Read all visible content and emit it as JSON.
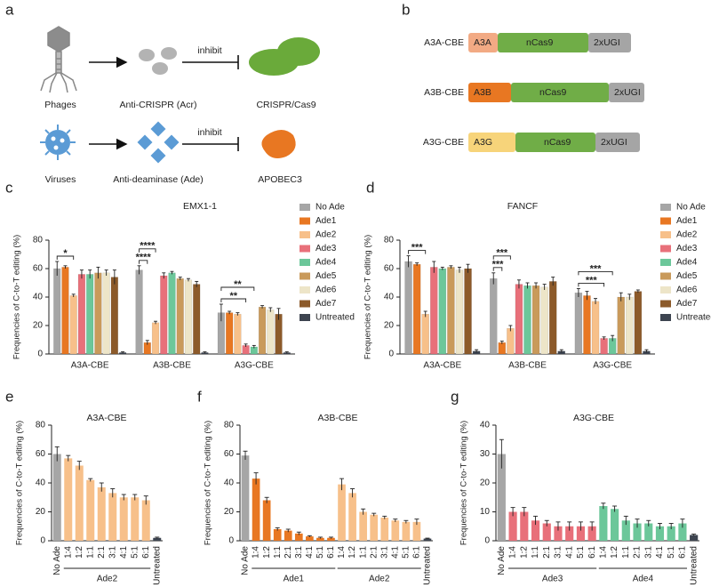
{
  "panel_labels": [
    "a",
    "b",
    "c",
    "d",
    "e",
    "f",
    "g"
  ],
  "diagram_a": {
    "rows": [
      {
        "source": "Phages",
        "inhibitor": "Anti-CRISPR (Acr)",
        "verb": "inhibit",
        "target": "CRISPR/Cas9"
      },
      {
        "source": "Viruses",
        "inhibitor": "Anti-deaminase (Ade)",
        "verb": "inhibit",
        "target": "APOBEC3"
      }
    ]
  },
  "diagram_b": {
    "constructs": [
      {
        "name": "A3A-CBE",
        "domains": [
          {
            "label": "A3A",
            "color": "#f2aa84"
          },
          {
            "label": "nCas9",
            "color": "#70ad47"
          },
          {
            "label": "2xUGI",
            "color": "#a5a5a5"
          }
        ]
      },
      {
        "name": "A3B-CBE",
        "domains": [
          {
            "label": "A3B",
            "color": "#e87722"
          },
          {
            "label": "nCas9",
            "color": "#70ad47"
          },
          {
            "label": "2xUGI",
            "color": "#a5a5a5"
          }
        ]
      },
      {
        "name": "A3G-CBE",
        "domains": [
          {
            "label": "A3G",
            "color": "#f7d47a"
          },
          {
            "label": "nCas9",
            "color": "#70ad47"
          },
          {
            "label": "2xUGI",
            "color": "#a5a5a5"
          }
        ]
      }
    ]
  },
  "chart_data": [
    {
      "type": "grouped_bar",
      "title": "EMX1-1",
      "y_label": "Frequencies of C-to-T editing (%)",
      "categories": [
        "A3A-CBE",
        "A3B-CBE",
        "A3G-CBE"
      ],
      "series": [
        {
          "name": "No Ade",
          "color": "#a6a6a6",
          "values": [
            60,
            59,
            29
          ],
          "errors": [
            5,
            3,
            6
          ]
        },
        {
          "name": "Ade1",
          "color": "#e87722",
          "values": [
            61,
            8,
            29
          ],
          "errors": [
            1,
            1.5,
            1
          ]
        },
        {
          "name": "Ade2",
          "color": "#f7c08a",
          "values": [
            41,
            22,
            28
          ],
          "errors": [
            1,
            1,
            1
          ]
        },
        {
          "name": "Ade3",
          "color": "#e8707a",
          "values": [
            56,
            55,
            6
          ],
          "errors": [
            3,
            2,
            1
          ]
        },
        {
          "name": "Ade4",
          "color": "#6cc79a",
          "values": [
            56,
            57,
            5
          ],
          "errors": [
            3,
            1,
            1
          ]
        },
        {
          "name": "Ade5",
          "color": "#c99a5b",
          "values": [
            57,
            53,
            33
          ],
          "errors": [
            4,
            1,
            1
          ]
        },
        {
          "name": "Ade6",
          "color": "#ede5c8",
          "values": [
            57,
            52,
            31
          ],
          "errors": [
            2,
            1,
            1.5
          ]
        },
        {
          "name": "Ade7",
          "color": "#8c5a2a",
          "values": [
            54,
            49,
            28
          ],
          "errors": [
            5,
            2,
            4
          ]
        },
        {
          "name": "Untreated",
          "color": "#3d4450",
          "values": [
            1,
            1,
            1
          ],
          "errors": [
            0.5,
            0.5,
            0.5
          ]
        }
      ],
      "ylim": [
        0,
        80
      ],
      "yticks": [
        0,
        20,
        40,
        60,
        80
      ],
      "annotations": [
        {
          "text": "*",
          "category": "A3A-CBE",
          "pair": [
            "No Ade",
            "Ade2"
          ]
        },
        {
          "text": "****",
          "category": "A3B-CBE",
          "pair": [
            "No Ade",
            "Ade1"
          ]
        },
        {
          "text": "****",
          "category": "A3B-CBE",
          "pair": [
            "No Ade",
            "Ade2"
          ]
        },
        {
          "text": "**",
          "category": "A3G-CBE",
          "pair": [
            "No Ade",
            "Ade3"
          ]
        },
        {
          "text": "**",
          "category": "A3G-CBE",
          "pair": [
            "No Ade",
            "Ade4"
          ]
        }
      ]
    },
    {
      "type": "grouped_bar",
      "title": "FANCF",
      "y_label": "Frequencies of C-to-T editing (%)",
      "categories": [
        "A3A-CBE",
        "A3B-CBE",
        "A3G-CBE"
      ],
      "series": [
        {
          "name": "No Ade",
          "color": "#a6a6a6",
          "values": [
            65,
            53,
            43
          ],
          "errors": [
            4,
            4,
            3
          ]
        },
        {
          "name": "Ade1",
          "color": "#e87722",
          "values": [
            63,
            8,
            41
          ],
          "errors": [
            1,
            1,
            3
          ]
        },
        {
          "name": "Ade2",
          "color": "#f7c08a",
          "values": [
            28,
            18,
            37
          ],
          "errors": [
            2,
            2,
            2
          ]
        },
        {
          "name": "Ade3",
          "color": "#e8707a",
          "values": [
            61,
            49,
            11
          ],
          "errors": [
            4,
            3,
            1
          ]
        },
        {
          "name": "Ade4",
          "color": "#6cc79a",
          "values": [
            60,
            48,
            11
          ],
          "errors": [
            1,
            2,
            2
          ]
        },
        {
          "name": "Ade5",
          "color": "#c99a5b",
          "values": [
            61,
            48,
            40
          ],
          "errors": [
            1,
            2,
            3
          ]
        },
        {
          "name": "Ade6",
          "color": "#ede5c8",
          "values": [
            59,
            47,
            40
          ],
          "errors": [
            2,
            2,
            2
          ]
        },
        {
          "name": "Ade7",
          "color": "#8c5a2a",
          "values": [
            60,
            51,
            44
          ],
          "errors": [
            3,
            3,
            1
          ]
        },
        {
          "name": "Untreated",
          "color": "#3d4450",
          "values": [
            2,
            2,
            2
          ],
          "errors": [
            1,
            1,
            1
          ]
        }
      ],
      "ylim": [
        0,
        80
      ],
      "yticks": [
        0,
        20,
        40,
        60,
        80
      ],
      "annotations": [
        {
          "text": "***",
          "category": "A3A-CBE",
          "pair": [
            "No Ade",
            "Ade2"
          ]
        },
        {
          "text": "***",
          "category": "A3B-CBE",
          "pair": [
            "No Ade",
            "Ade1"
          ]
        },
        {
          "text": "***",
          "category": "A3B-CBE",
          "pair": [
            "No Ade",
            "Ade2"
          ]
        },
        {
          "text": "***",
          "category": "A3G-CBE",
          "pair": [
            "No Ade",
            "Ade3"
          ]
        },
        {
          "text": "***",
          "category": "A3G-CBE",
          "pair": [
            "No Ade",
            "Ade4"
          ]
        }
      ]
    },
    {
      "type": "bar",
      "title": "A3A-CBE",
      "y_label": "Frequencies of C-to-T editing (%)",
      "sections": [
        {
          "label": null,
          "color": "#a6a6a6",
          "categories": [
            "No Ade"
          ],
          "values": [
            60
          ],
          "errors": [
            5
          ]
        },
        {
          "label": "Ade2",
          "color": "#f7c08a",
          "categories": [
            "1:4",
            "1:2",
            "1:1",
            "2:1",
            "3:1",
            "4:1",
            "5:1",
            "6:1"
          ],
          "values": [
            57,
            52,
            42,
            37,
            33,
            30,
            30,
            28
          ],
          "errors": [
            2,
            3,
            1,
            3,
            3,
            2,
            2,
            3
          ]
        },
        {
          "label": null,
          "color": "#3d4450",
          "categories": [
            "Untreated"
          ],
          "values": [
            2
          ],
          "errors": [
            0.5
          ]
        }
      ],
      "ylim": [
        0,
        80
      ],
      "yticks": [
        0,
        20,
        40,
        60,
        80
      ]
    },
    {
      "type": "bar",
      "title": "A3B-CBE",
      "y_label": "Frequencies of C-to-T editing (%)",
      "sections": [
        {
          "label": null,
          "color": "#a6a6a6",
          "categories": [
            "No Ade"
          ],
          "values": [
            59
          ],
          "errors": [
            3
          ]
        },
        {
          "label": "Ade1",
          "color": "#e87722",
          "categories": [
            "1:4",
            "1:2",
            "1:1",
            "2:1",
            "3:1",
            "4:1",
            "5:1",
            "6:1"
          ],
          "values": [
            43,
            28,
            8,
            7,
            5,
            3,
            2,
            2
          ],
          "errors": [
            4,
            2,
            1,
            1,
            1,
            0.5,
            0.5,
            0.5
          ]
        },
        {
          "label": "Ade2",
          "color": "#f7c08a",
          "categories": [
            "1:4",
            "1:2",
            "1:1",
            "2:1",
            "3:1",
            "4:1",
            "5:1",
            "6:1"
          ],
          "values": [
            39,
            33,
            20,
            18,
            16,
            14,
            13,
            13
          ],
          "errors": [
            4,
            3,
            2,
            1,
            1,
            1,
            1,
            2
          ]
        },
        {
          "label": null,
          "color": "#3d4450",
          "categories": [
            "Untreated"
          ],
          "values": [
            1.5
          ],
          "errors": [
            0.3
          ]
        }
      ],
      "ylim": [
        0,
        80
      ],
      "yticks": [
        0,
        20,
        40,
        60,
        80
      ]
    },
    {
      "type": "bar",
      "title": "A3G-CBE",
      "y_label": "Frequencies of C-to-T editing (%)",
      "sections": [
        {
          "label": null,
          "color": "#a6a6a6",
          "categories": [
            "No Ade"
          ],
          "values": [
            30
          ],
          "errors": [
            5
          ]
        },
        {
          "label": "Ade3",
          "color": "#e8707a",
          "categories": [
            "1:4",
            "1:2",
            "1:1",
            "2:1",
            "3:1",
            "4:1",
            "5:1",
            "6:1"
          ],
          "values": [
            10,
            10,
            7,
            6,
            5,
            5,
            5,
            5
          ],
          "errors": [
            1.5,
            1.5,
            1.5,
            1,
            1.5,
            1.5,
            1.5,
            1.5
          ]
        },
        {
          "label": "Ade4",
          "color": "#6cc79a",
          "categories": [
            "1:4",
            "1:2",
            "1:1",
            "2:1",
            "3:1",
            "4:1",
            "5:1",
            "6:1"
          ],
          "values": [
            12,
            11,
            7,
            6,
            6,
            5,
            5,
            6
          ],
          "errors": [
            1,
            1,
            1.5,
            1.5,
            1,
            1,
            1,
            1.5
          ]
        },
        {
          "label": null,
          "color": "#3d4450",
          "categories": [
            "Untreated"
          ],
          "values": [
            2
          ],
          "errors": [
            0.3
          ]
        }
      ],
      "ylim": [
        0,
        40
      ],
      "yticks": [
        0,
        10,
        20,
        30,
        40
      ]
    }
  ]
}
